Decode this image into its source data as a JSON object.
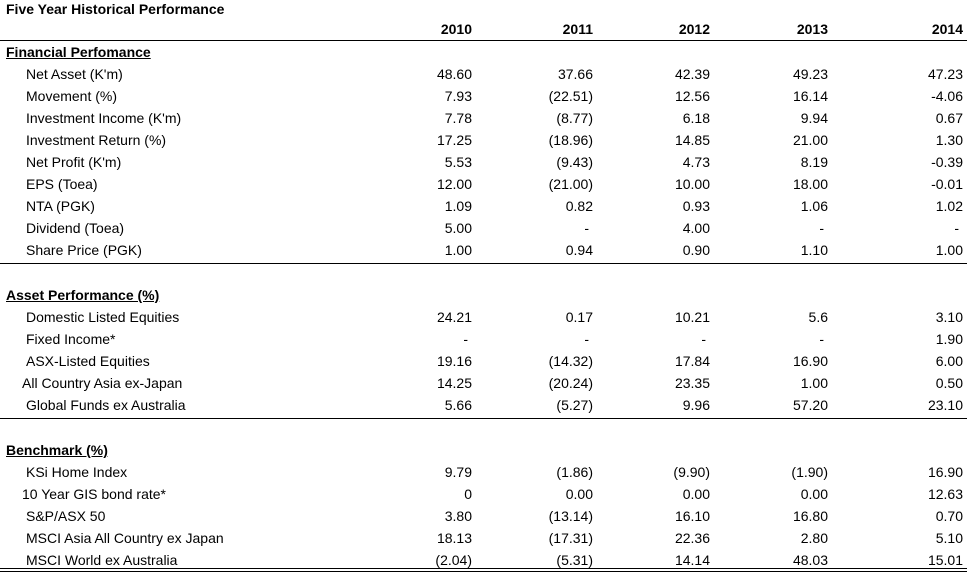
{
  "title": "Five Year Historical Performance",
  "years": [
    "2010",
    "2011",
    "2012",
    "2013",
    "2014"
  ],
  "sections": [
    {
      "title": "Financial Perfomance",
      "rows": [
        {
          "label": "Net Asset (K'm)",
          "values": [
            "48.60",
            "37.66",
            "42.39",
            "49.23",
            "47.23"
          ]
        },
        {
          "label": "Movement (%)",
          "values": [
            "7.93",
            "(22.51)",
            "12.56",
            "16.14",
            "-4.06"
          ]
        },
        {
          "label": "Investment Income (K'm)",
          "values": [
            "7.78",
            "(8.77)",
            "6.18",
            "9.94",
            "0.67"
          ]
        },
        {
          "label": "Investment Return (%)",
          "values": [
            "17.25",
            "(18.96)",
            "14.85",
            "21.00",
            "1.30"
          ]
        },
        {
          "label": "Net Profit (K'm)",
          "values": [
            "5.53",
            "(9.43)",
            "4.73",
            "8.19",
            "-0.39"
          ]
        },
        {
          "label": "EPS (Toea)",
          "values": [
            "12.00",
            "(21.00)",
            "10.00",
            "18.00",
            "-0.01"
          ]
        },
        {
          "label": "NTA (PGK)",
          "values": [
            "1.09",
            "0.82",
            "0.93",
            "1.06",
            "1.02"
          ]
        },
        {
          "label": "Dividend (Toea)",
          "values": [
            "5.00",
            "-",
            "4.00",
            "-",
            "-"
          ]
        },
        {
          "label": "Share Price (PGK)",
          "values": [
            "1.00",
            "0.94",
            "0.90",
            "1.10",
            "1.00"
          ]
        }
      ]
    },
    {
      "title": "Asset Performance (%)",
      "rows": [
        {
          "label": "Domestic Listed Equities",
          "values": [
            "24.21",
            "0.17",
            "10.21",
            "5.6",
            "3.10"
          ]
        },
        {
          "label": "Fixed Income*",
          "values": [
            "-",
            "-",
            "-",
            "-",
            "1.90"
          ]
        },
        {
          "label": "ASX-Listed Equities",
          "values": [
            "19.16",
            "(14.32)",
            "17.84",
            "16.90",
            "6.00"
          ]
        },
        {
          "label": "All Country Asia ex-Japan",
          "values": [
            "14.25",
            "(20.24)",
            "23.35",
            "1.00",
            "0.50"
          ]
        },
        {
          "label": "Global Funds ex Australia",
          "values": [
            "5.66",
            "(5.27)",
            "9.96",
            "57.20",
            "23.10"
          ]
        }
      ]
    },
    {
      "title": "Benchmark (%)",
      "rows": [
        {
          "label": "KSi Home Index",
          "values": [
            "9.79",
            "(1.86)",
            "(9.90)",
            "(1.90)",
            "16.90"
          ]
        },
        {
          "label": "10 Year GIS bond rate*",
          "values": [
            "0",
            "0.00",
            "0.00",
            "0.00",
            "12.63"
          ]
        },
        {
          "label": "S&P/ASX 50",
          "values": [
            "3.80",
            "(13.14)",
            "16.10",
            "16.80",
            "0.70"
          ]
        },
        {
          "label": "MSCI Asia All Country ex Japan",
          "values": [
            "18.13",
            "(17.31)",
            "22.36",
            "2.80",
            "5.10"
          ]
        },
        {
          "label": "MSCI World ex Australia",
          "values": [
            "(2.04)",
            "(5.31)",
            "14.14",
            "48.03",
            "15.01"
          ]
        }
      ]
    }
  ]
}
